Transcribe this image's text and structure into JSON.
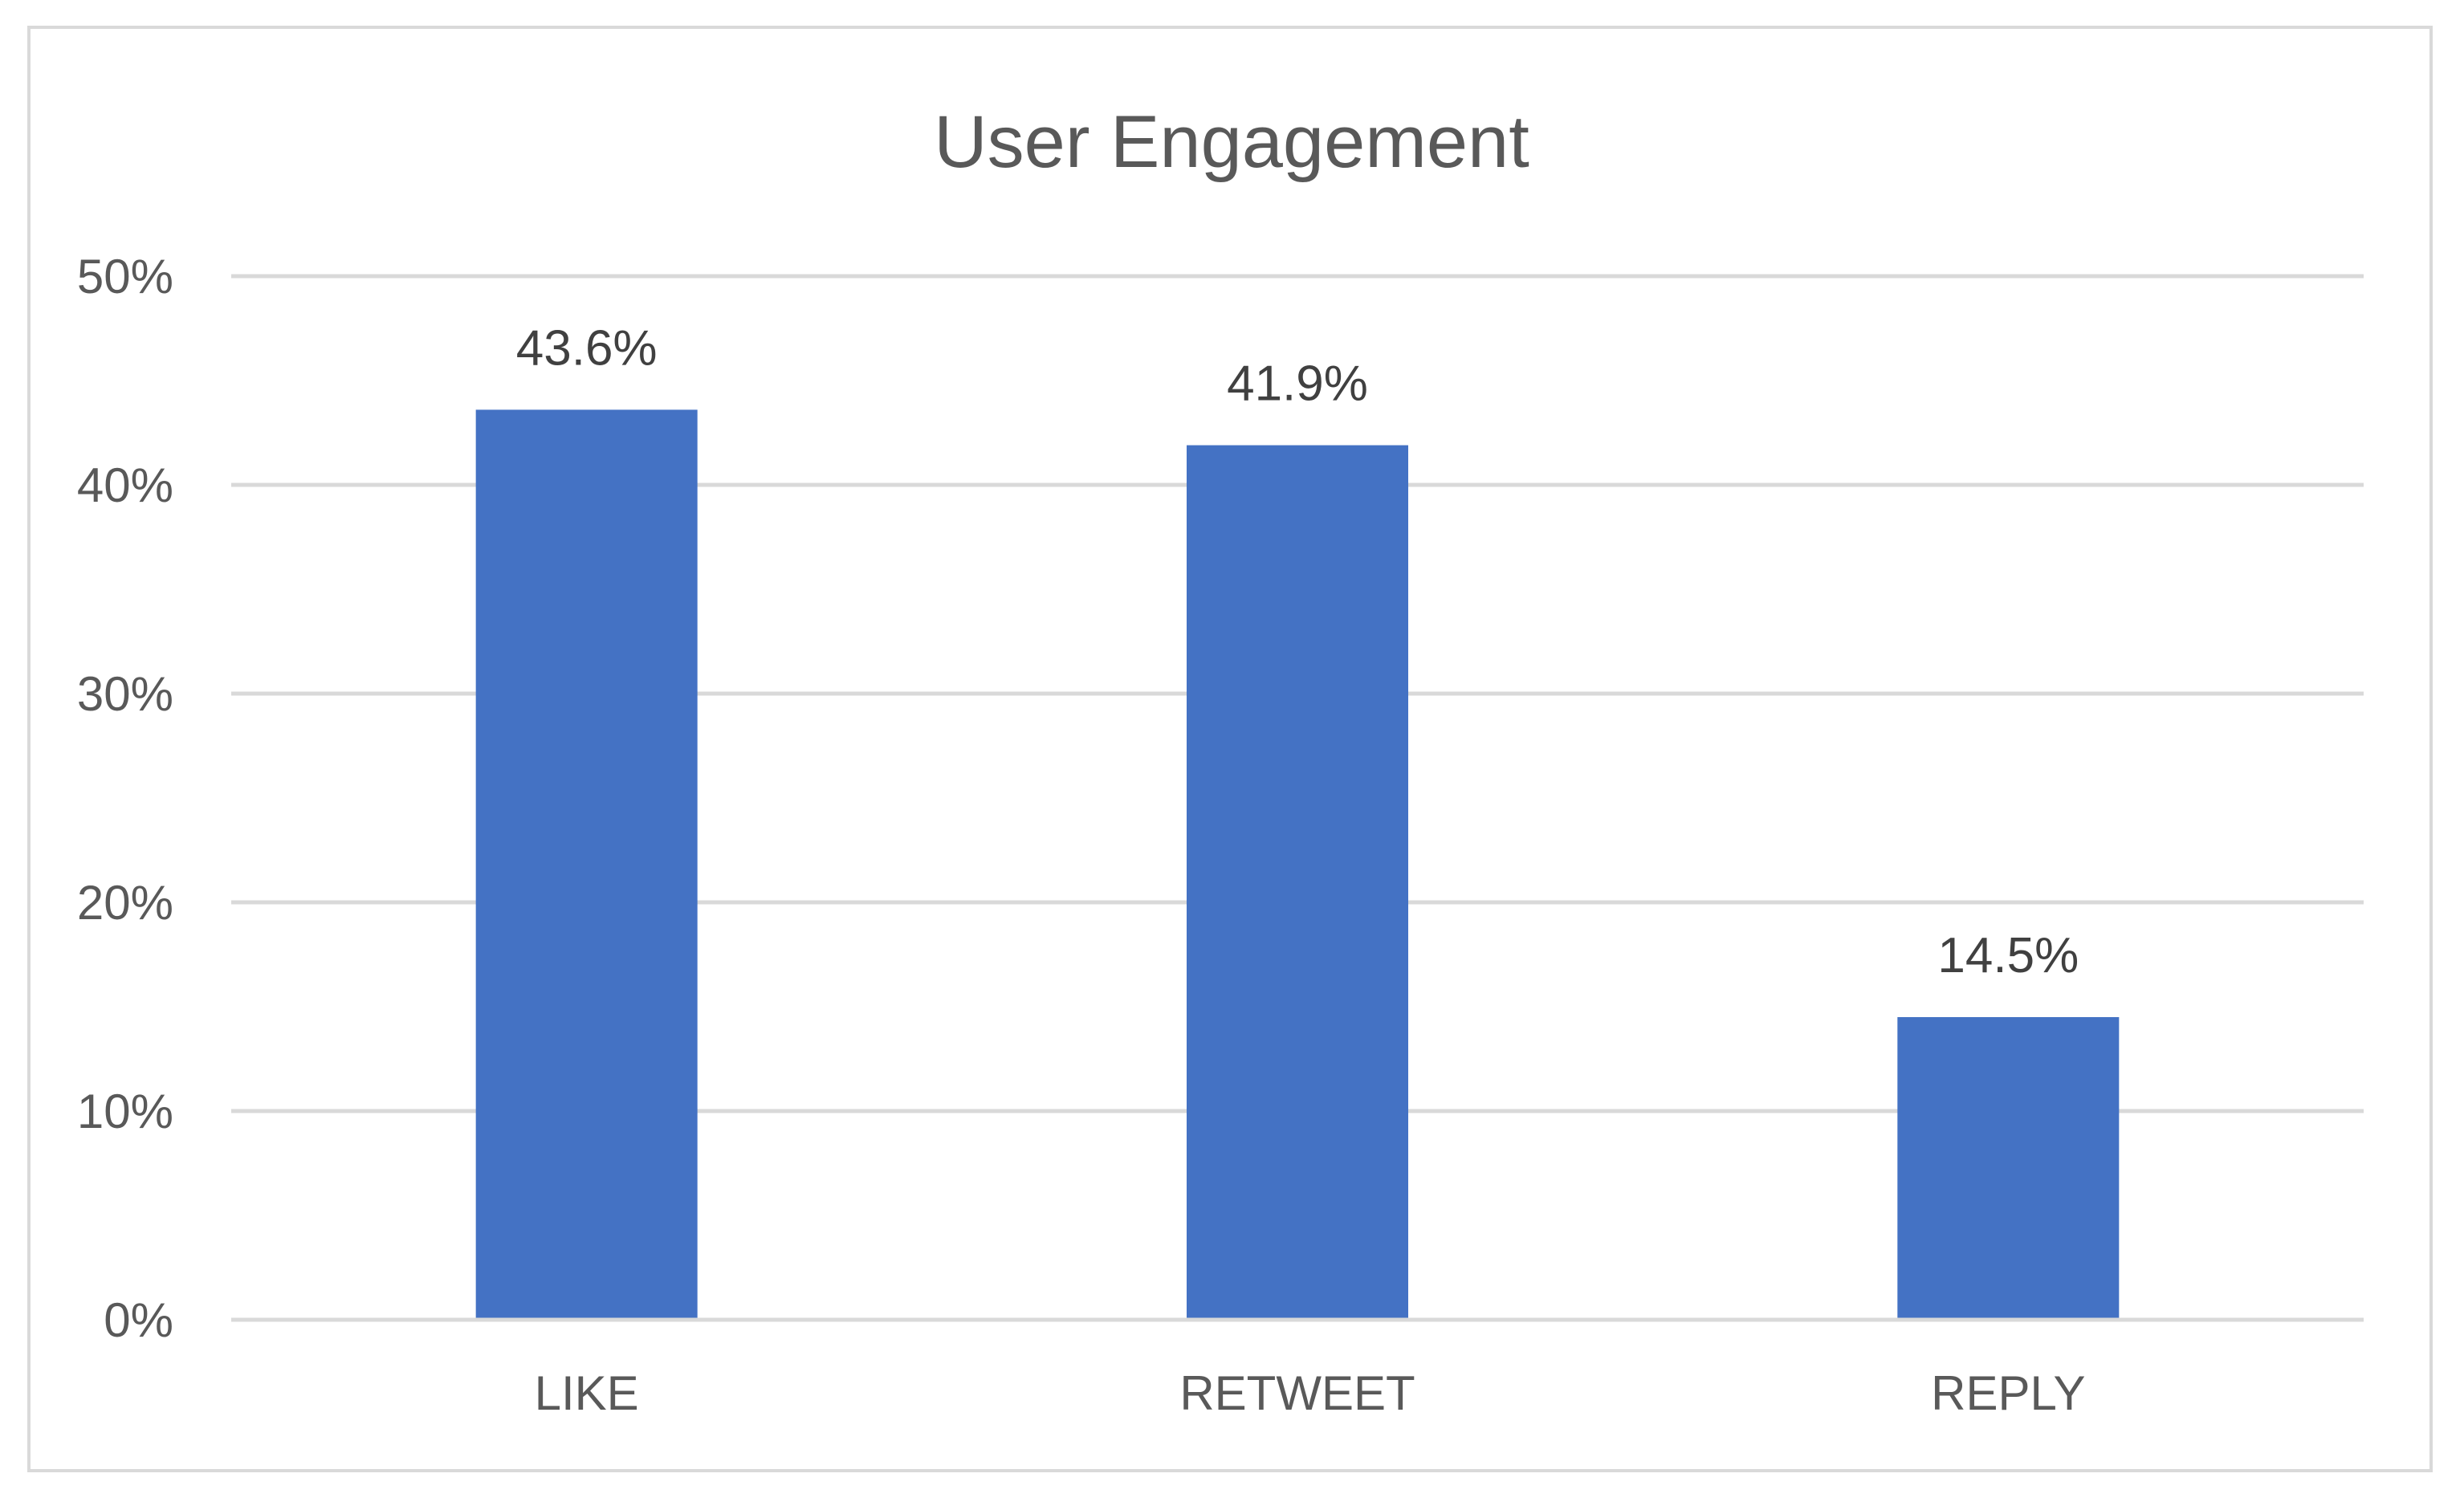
{
  "chart_data": {
    "type": "bar",
    "title": "User Engagement",
    "xlabel": "",
    "ylabel": "",
    "categories": [
      "LIKE",
      "RETWEET",
      "REPLY"
    ],
    "values": [
      43.6,
      41.9,
      14.5
    ],
    "data_labels": [
      "43.6%",
      "41.9%",
      "14.5%"
    ],
    "y_ticks": [
      0,
      10,
      20,
      30,
      40,
      50
    ],
    "y_tick_labels": [
      "0%",
      "10%",
      "20%",
      "30%",
      "40%",
      "50%"
    ],
    "ylim": [
      0,
      50
    ],
    "grid": true,
    "legend": "none",
    "bar_color": "#4472c4",
    "grid_color": "#d9d9d9",
    "text_color": "#595959"
  }
}
